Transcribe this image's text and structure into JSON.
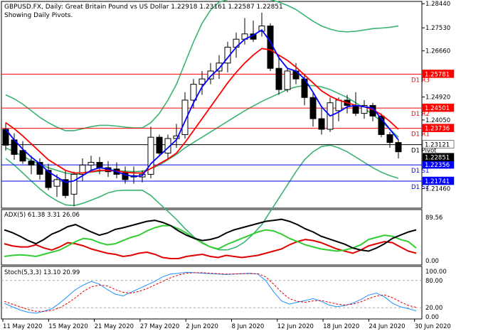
{
  "header": {
    "line1": "GBPUSD.FX, Daily:  Great Britain Pound vs US Dollar  1.22918 1.23161 1.22587 1.22851",
    "line2": "Showing Daily Pivots."
  },
  "price_axis": {
    "ticks": [
      "1.28440",
      "1.27530",
      "1.26660",
      "1.25781",
      "1.24920",
      "1.24050",
      "1.23121",
      "1.22851",
      "1.22356",
      "1.21741",
      "1.21460"
    ],
    "min": 1.2075,
    "max": 1.285
  },
  "pivots": [
    {
      "label": "D1 R3",
      "value": 1.25781,
      "color": "#ff0000",
      "tag": "1.25781"
    },
    {
      "label": "D1 R2",
      "value": 1.24501,
      "color": "#ff0000",
      "tag": "1.24501"
    },
    {
      "label": "D1 R1",
      "value": 1.23736,
      "color": "#ff0000",
      "tag": "1.23736"
    },
    {
      "label": "D1 Pivot",
      "value": 1.23121,
      "color": "#000000",
      "tag": "1.23121"
    },
    {
      "label": "D1 S1",
      "value": 1.22356,
      "color": "#0000ff",
      "tag": "1.22356"
    },
    {
      "label": "D1 S2",
      "value": 1.21741,
      "color": "#0000ff",
      "tag": "1.21741"
    }
  ],
  "current_price_tag": "1.22851",
  "colors": {
    "bull_candle": "#ffffff",
    "bear_candle": "#000000",
    "ma_red": "#ff0000",
    "ma_blue": "#0000ff",
    "bollinger": "#3cb371",
    "pivot_resistance": "#ff0000",
    "pivot_support": "#0000ff",
    "tag_resistance_bg": "#ff0000",
    "tag_support_bg": "#0000ff"
  },
  "adx": {
    "label": "ADX(5) 61.38 3.31 26.06",
    "ticks": [
      "89.56",
      "0.00"
    ],
    "adx_line": [
      62,
      57,
      50,
      42,
      36,
      44,
      54,
      60,
      68,
      72,
      65,
      58,
      52,
      56,
      63,
      66,
      70,
      74,
      78,
      80,
      76,
      70,
      60,
      52,
      46,
      42,
      44,
      48,
      56,
      62,
      66,
      70,
      74,
      78,
      80,
      82,
      78,
      72,
      64,
      58,
      50,
      45,
      40,
      35,
      28,
      24,
      22,
      28,
      36,
      46,
      52,
      58,
      62
    ],
    "plus_di": [
      12,
      14,
      15,
      14,
      12,
      16,
      20,
      24,
      32,
      40,
      46,
      44,
      38,
      34,
      36,
      42,
      48,
      52,
      60,
      66,
      70,
      70,
      64,
      56,
      46,
      38,
      30,
      26,
      34,
      40,
      46,
      52,
      58,
      62,
      60,
      54,
      46,
      40,
      34,
      30,
      26,
      24,
      22,
      24,
      28,
      34,
      44,
      48,
      52,
      50,
      44,
      40,
      28
    ],
    "minus_di": [
      36,
      32,
      30,
      30,
      34,
      28,
      24,
      30,
      38,
      36,
      32,
      26,
      22,
      18,
      16,
      12,
      14,
      18,
      20,
      16,
      10,
      8,
      8,
      12,
      14,
      16,
      12,
      10,
      14,
      12,
      10,
      12,
      14,
      18,
      22,
      26,
      34,
      40,
      44,
      42,
      38,
      32,
      26,
      22,
      18,
      24,
      32,
      36,
      40,
      38,
      30,
      22,
      18
    ]
  },
  "stoch": {
    "label": "Stoch(5,3,3) 13.10 20.99",
    "ticks": [
      "100.00",
      "80.00",
      "20.00",
      "0.00"
    ],
    "main": [
      30,
      22,
      15,
      10,
      8,
      12,
      18,
      30,
      45,
      60,
      70,
      78,
      72,
      60,
      50,
      46,
      54,
      62,
      70,
      78,
      88,
      94,
      96,
      98,
      97,
      96,
      95,
      94,
      93,
      94,
      95,
      96,
      94,
      80,
      55,
      35,
      28,
      32,
      36,
      40,
      34,
      26,
      22,
      25,
      30,
      38,
      48,
      52,
      44,
      30,
      22,
      18,
      13
    ],
    "signal": [
      34,
      28,
      22,
      16,
      12,
      12,
      14,
      20,
      30,
      42,
      56,
      66,
      70,
      68,
      60,
      54,
      52,
      56,
      62,
      70,
      78,
      86,
      92,
      96,
      97,
      97,
      96,
      95,
      94,
      94,
      95,
      95,
      95,
      88,
      72,
      54,
      40,
      34,
      32,
      35,
      36,
      32,
      28,
      26,
      28,
      33,
      40,
      46,
      48,
      42,
      33,
      25,
      21
    ]
  },
  "time_axis": {
    "labels": [
      "11 May 2020",
      "15 May 2020",
      "21 May 2020",
      "27 May 2020",
      "2 Jun 2020",
      "8 Jun 2020",
      "12 Jun 2020",
      "18 Jun 2020",
      "24 Jun 2020",
      "30 Jun 2020"
    ]
  },
  "chart_data": {
    "type": "candlestick",
    "title": "GBPUSD.FX, Daily:  Great Britain Pound vs US Dollar",
    "subtitle": "Showing Daily Pivots.",
    "ylim": [
      1.2075,
      1.285
    ],
    "x_tick_labels": [
      "11 May 2020",
      "15 May 2020",
      "21 May 2020",
      "27 May 2020",
      "2 Jun 2020",
      "8 Jun 2020",
      "12 Jun 2020",
      "18 Jun 2020",
      "24 Jun 2020",
      "30 Jun 2020"
    ],
    "candles": [
      {
        "o": 1.237,
        "h": 1.2395,
        "l": 1.229,
        "c": 1.231
      },
      {
        "o": 1.233,
        "h": 1.2355,
        "l": 1.2255,
        "c": 1.2275
      },
      {
        "o": 1.229,
        "h": 1.2325,
        "l": 1.224,
        "c": 1.225
      },
      {
        "o": 1.225,
        "h": 1.227,
        "l": 1.22,
        "c": 1.2235
      },
      {
        "o": 1.2245,
        "h": 1.226,
        "l": 1.218,
        "c": 1.22
      },
      {
        "o": 1.2215,
        "h": 1.224,
        "l": 1.214,
        "c": 1.215
      },
      {
        "o": 1.2155,
        "h": 1.22,
        "l": 1.2115,
        "c": 1.218
      },
      {
        "o": 1.218,
        "h": 1.2215,
        "l": 1.211,
        "c": 1.212
      },
      {
        "o": 1.2125,
        "h": 1.221,
        "l": 1.208,
        "c": 1.22
      },
      {
        "o": 1.22,
        "h": 1.226,
        "l": 1.2175,
        "c": 1.2235
      },
      {
        "o": 1.2235,
        "h": 1.227,
        "l": 1.221,
        "c": 1.2245
      },
      {
        "o": 1.2245,
        "h": 1.2265,
        "l": 1.22,
        "c": 1.2225
      },
      {
        "o": 1.2225,
        "h": 1.225,
        "l": 1.219,
        "c": 1.221
      },
      {
        "o": 1.222,
        "h": 1.2245,
        "l": 1.2185,
        "c": 1.22
      },
      {
        "o": 1.2205,
        "h": 1.223,
        "l": 1.2165,
        "c": 1.218
      },
      {
        "o": 1.2195,
        "h": 1.223,
        "l": 1.2165,
        "c": 1.219
      },
      {
        "o": 1.219,
        "h": 1.2215,
        "l": 1.217,
        "c": 1.22
      },
      {
        "o": 1.22,
        "h": 1.238,
        "l": 1.2185,
        "c": 1.234
      },
      {
        "o": 1.234,
        "h": 1.235,
        "l": 1.227,
        "c": 1.228
      },
      {
        "o": 1.228,
        "h": 1.235,
        "l": 1.226,
        "c": 1.2335
      },
      {
        "o": 1.2335,
        "h": 1.239,
        "l": 1.23,
        "c": 1.2345
      },
      {
        "o": 1.235,
        "h": 1.251,
        "l": 1.2335,
        "c": 1.248
      },
      {
        "o": 1.248,
        "h": 1.256,
        "l": 1.245,
        "c": 1.254
      },
      {
        "o": 1.254,
        "h": 1.259,
        "l": 1.25,
        "c": 1.256
      },
      {
        "o": 1.256,
        "h": 1.262,
        "l": 1.254,
        "c": 1.259
      },
      {
        "o": 1.259,
        "h": 1.265,
        "l": 1.256,
        "c": 1.262
      },
      {
        "o": 1.262,
        "h": 1.27,
        "l": 1.2585,
        "c": 1.268
      },
      {
        "o": 1.268,
        "h": 1.2735,
        "l": 1.264,
        "c": 1.271
      },
      {
        "o": 1.271,
        "h": 1.279,
        "l": 1.269,
        "c": 1.273
      },
      {
        "o": 1.273,
        "h": 1.278,
        "l": 1.27,
        "c": 1.271
      },
      {
        "o": 1.274,
        "h": 1.281,
        "l": 1.272,
        "c": 1.276
      },
      {
        "o": 1.276,
        "h": 1.277,
        "l": 1.259,
        "c": 1.26
      },
      {
        "o": 1.26,
        "h": 1.265,
        "l": 1.25,
        "c": 1.252
      },
      {
        "o": 1.252,
        "h": 1.26,
        "l": 1.251,
        "c": 1.259
      },
      {
        "o": 1.259,
        "h": 1.262,
        "l": 1.254,
        "c": 1.256
      },
      {
        "o": 1.256,
        "h": 1.258,
        "l": 1.246,
        "c": 1.249
      },
      {
        "o": 1.249,
        "h": 1.251,
        "l": 1.238,
        "c": 1.241
      },
      {
        "o": 1.241,
        "h": 1.245,
        "l": 1.235,
        "c": 1.237
      },
      {
        "o": 1.237,
        "h": 1.249,
        "l": 1.236,
        "c": 1.247
      },
      {
        "o": 1.244,
        "h": 1.249,
        "l": 1.24,
        "c": 1.248
      },
      {
        "o": 1.248,
        "h": 1.25,
        "l": 1.243,
        "c": 1.246
      },
      {
        "o": 1.246,
        "h": 1.251,
        "l": 1.242,
        "c": 1.243
      },
      {
        "o": 1.243,
        "h": 1.248,
        "l": 1.241,
        "c": 1.246
      },
      {
        "o": 1.246,
        "h": 1.247,
        "l": 1.24,
        "c": 1.242
      },
      {
        "o": 1.242,
        "h": 1.243,
        "l": 1.234,
        "c": 1.235
      },
      {
        "o": 1.235,
        "h": 1.236,
        "l": 1.23,
        "c": 1.232
      },
      {
        "o": 1.232,
        "h": 1.233,
        "l": 1.226,
        "c": 1.2285
      }
    ],
    "ma_red": [
      1.2395,
      1.2372,
      1.2345,
      1.2315,
      1.2285,
      1.2255,
      1.2235,
      1.2215,
      1.2205,
      1.2205,
      1.221,
      1.2215,
      1.2215,
      1.2212,
      1.2208,
      1.2205,
      1.2205,
      1.2222,
      1.224,
      1.2258,
      1.228,
      1.232,
      1.2365,
      1.241,
      1.2455,
      1.25,
      1.2545,
      1.2585,
      1.262,
      1.265,
      1.2675,
      1.267,
      1.265,
      1.263,
      1.2605,
      1.2575,
      1.2545,
      1.2515,
      1.2495,
      1.248,
      1.247,
      1.246,
      1.2455,
      1.2445,
      1.2425,
      1.24,
      1.237
    ],
    "ma_blue": [
      1.237,
      1.233,
      1.2295,
      1.2265,
      1.224,
      1.221,
      1.219,
      1.217,
      1.2175,
      1.2195,
      1.2215,
      1.2225,
      1.222,
      1.221,
      1.2198,
      1.2192,
      1.2195,
      1.224,
      1.227,
      1.23,
      1.233,
      1.24,
      1.247,
      1.253,
      1.257,
      1.26,
      1.264,
      1.268,
      1.271,
      1.2725,
      1.2745,
      1.27,
      1.264,
      1.26,
      1.259,
      1.256,
      1.251,
      1.2455,
      1.242,
      1.2435,
      1.2455,
      1.246,
      1.2455,
      1.245,
      1.241,
      1.237,
      1.233
    ],
    "bb_upper": [
      1.25,
      1.2485,
      1.2465,
      1.244,
      1.2415,
      1.2395,
      1.2378,
      1.2365,
      1.2365,
      1.2372,
      1.238,
      1.2385,
      1.2385,
      1.2382,
      1.2378,
      1.2375,
      1.2375,
      1.2395,
      1.243,
      1.248,
      1.254,
      1.262,
      1.27,
      1.277,
      1.282,
      1.285,
      1.286,
      1.2865,
      1.287,
      1.287,
      1.2868,
      1.286,
      1.285,
      1.2838,
      1.2822,
      1.28,
      1.2778,
      1.276,
      1.2748,
      1.274,
      1.2738,
      1.274,
      1.2745,
      1.275,
      1.2752,
      1.2755,
      1.276
    ],
    "bb_mid": [
      1.23,
      1.2285,
      1.2268,
      1.2252,
      1.2238,
      1.2225,
      1.2215,
      1.2205,
      1.22,
      1.2202,
      1.2208,
      1.2212,
      1.2215,
      1.2214,
      1.2212,
      1.221,
      1.2212,
      1.222,
      1.2235,
      1.2255,
      1.2275,
      1.23,
      1.232,
      1.234,
      1.236,
      1.238,
      1.24,
      1.242,
      1.244,
      1.2458,
      1.2475,
      1.249,
      1.2505,
      1.252,
      1.253,
      1.2535,
      1.2535,
      1.253,
      1.252,
      1.2505,
      1.249,
      1.247,
      1.245,
      1.2425,
      1.24,
      1.237,
      1.234
    ],
    "bb_lower": [
      1.226,
      1.2235,
      1.2205,
      1.2175,
      1.2145,
      1.212,
      1.21,
      1.2085,
      1.2082,
      1.209,
      1.2102,
      1.2115,
      1.213,
      1.2138,
      1.214,
      1.214,
      1.214,
      1.212,
      1.209,
      1.206,
      1.203,
      1.1995,
      1.1965,
      1.194,
      1.1925,
      1.1915,
      1.1915,
      1.1925,
      1.1945,
      1.1975,
      1.201,
      1.206,
      1.211,
      1.216,
      1.221,
      1.2255,
      1.2285,
      1.2305,
      1.231,
      1.23,
      1.2285,
      1.2265,
      1.2245,
      1.2225,
      1.2208,
      1.2195,
      1.2185
    ]
  }
}
